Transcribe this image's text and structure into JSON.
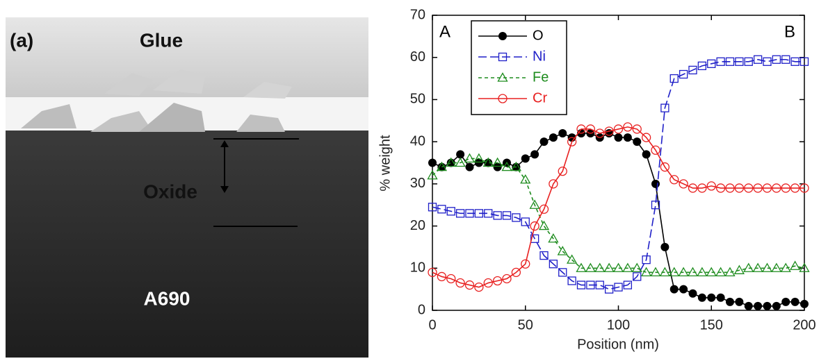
{
  "image_panel": {
    "panel_label": "(a)",
    "labels": [
      "Glue",
      "Oxide",
      "A690"
    ]
  },
  "chart_data": {
    "type": "line",
    "xlabel": "Position (nm)",
    "ylabel": "% weight",
    "annotations": [
      "A",
      "B"
    ],
    "x": [
      0,
      5,
      10,
      15,
      20,
      25,
      30,
      35,
      40,
      45,
      50,
      55,
      60,
      65,
      70,
      75,
      80,
      85,
      90,
      95,
      100,
      105,
      110,
      115,
      120,
      125,
      130,
      135,
      140,
      145,
      150,
      155,
      160,
      165,
      170,
      175,
      180,
      185,
      190,
      195,
      200
    ],
    "series": [
      {
        "name": "O",
        "color": "#000000",
        "marker": "filled-circle",
        "linestyle": "solid",
        "values": [
          35,
          34,
          35,
          37,
          34,
          35,
          35,
          34,
          35,
          34,
          36,
          37,
          40,
          41,
          42,
          41,
          42,
          42,
          41,
          42,
          41,
          41,
          40,
          37,
          30,
          15,
          5,
          5,
          4,
          3,
          3,
          3,
          2,
          2,
          1,
          1,
          1,
          1,
          2,
          2,
          1.5
        ]
      },
      {
        "name": "Ni",
        "color": "#1f1fc8",
        "marker": "open-square",
        "linestyle": "dashed",
        "values": [
          24.5,
          24,
          23.5,
          23,
          23,
          23,
          23,
          22.5,
          22.5,
          22,
          21,
          17,
          13,
          11,
          9,
          7,
          6,
          6,
          6,
          5,
          5.5,
          6,
          8,
          12,
          25,
          48,
          55,
          56,
          57,
          58,
          58.5,
          59,
          59,
          59,
          59,
          59.5,
          59,
          59.5,
          59.5,
          59,
          59
        ]
      },
      {
        "name": "Fe",
        "color": "#1e8c1e",
        "marker": "open-triangle",
        "linestyle": "dotted",
        "values": [
          32,
          34,
          35,
          35,
          36,
          36,
          35,
          35,
          34,
          34,
          31,
          25,
          20,
          17,
          14,
          12,
          10,
          10,
          10,
          10,
          10,
          10,
          10,
          9,
          9,
          9,
          9,
          9,
          9,
          9,
          9,
          9,
          9,
          9.5,
          10,
          10,
          10,
          10,
          10,
          10.5,
          10
        ]
      },
      {
        "name": "Cr",
        "color": "#e82020",
        "marker": "open-circle",
        "linestyle": "solid",
        "values": [
          9,
          8,
          7.5,
          6.5,
          6,
          5.5,
          6.5,
          7,
          7.5,
          9,
          11,
          20,
          24,
          30,
          33,
          40,
          43,
          43,
          42,
          42.5,
          43,
          43.5,
          43,
          41,
          38,
          34,
          31,
          30,
          29,
          29,
          29.5,
          29,
          29,
          29,
          29,
          29,
          29,
          29,
          29,
          29,
          29
        ]
      }
    ],
    "xlim": [
      0,
      200
    ],
    "xticks": [
      0,
      50,
      100,
      150,
      200
    ],
    "ylim": [
      0,
      70
    ],
    "yticks": [
      0,
      10,
      20,
      30,
      40,
      50,
      60,
      70
    ],
    "legend": "upper left"
  }
}
